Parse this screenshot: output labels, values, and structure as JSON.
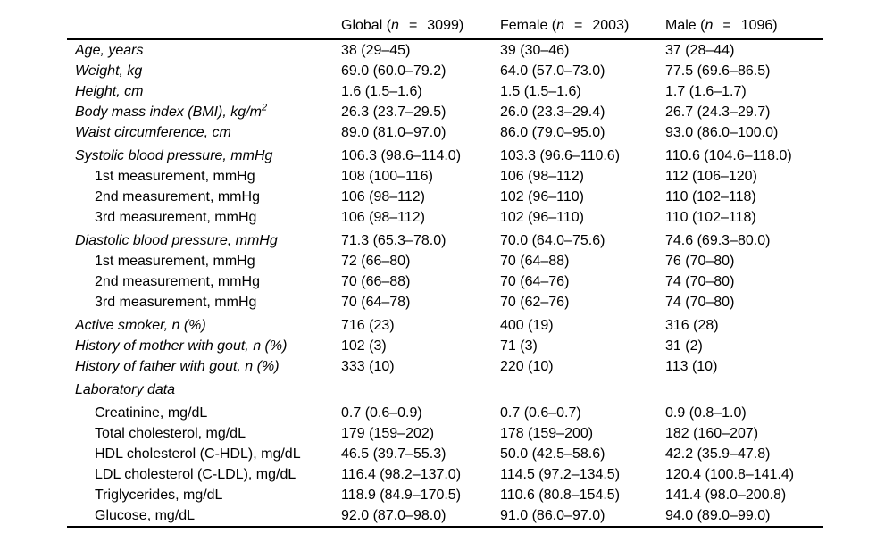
{
  "table": {
    "header": {
      "row_label_column": "",
      "columns": [
        {
          "prefix": "Global (",
          "n_symbol": "n",
          "equals": "=",
          "count": "3099)"
        },
        {
          "prefix": "Female (",
          "n_symbol": "n",
          "equals": "=",
          "count": "2003)"
        },
        {
          "prefix": "Male (",
          "n_symbol": "n",
          "equals": "=",
          "count": "1096)"
        }
      ]
    },
    "rows": [
      {
        "label": "Age, years",
        "style": "main",
        "spacer": false,
        "values": [
          "38 (29–45)",
          "39 (30–46)",
          "37 (28–44)"
        ]
      },
      {
        "label": "Weight, kg",
        "style": "main",
        "spacer": false,
        "values": [
          "69.0 (60.0–79.2)",
          "64.0 (57.0–73.0)",
          "77.5 (69.6–86.5)"
        ]
      },
      {
        "label": "Height, cm",
        "style": "main",
        "spacer": false,
        "values": [
          "1.6 (1.5–1.6)",
          "1.5 (1.5–1.6)",
          "1.7 (1.6–1.7)"
        ]
      },
      {
        "label": "Body mass index (BMI), kg/m",
        "sup": "2",
        "style": "main",
        "spacer": false,
        "values": [
          "26.3 (23.7–29.5)",
          "26.0 (23.3–29.4)",
          "26.7 (24.3–29.7)"
        ]
      },
      {
        "label": "Waist circumference, cm",
        "style": "main",
        "spacer": false,
        "values": [
          "89.0 (81.0–97.0)",
          "86.0 (79.0–95.0)",
          "93.0 (86.0–100.0)"
        ]
      },
      {
        "label": "Systolic blood pressure, mmHg",
        "style": "main",
        "spacer": true,
        "values": [
          "106.3 (98.6–114.0)",
          "103.3 (96.6–110.6)",
          "110.6 (104.6–118.0)"
        ]
      },
      {
        "label": "1st measurement, mmHg",
        "style": "sub",
        "spacer": false,
        "values": [
          "108 (100–116)",
          "106 (98–112)",
          "112 (106–120)"
        ]
      },
      {
        "label": "2nd measurement, mmHg",
        "style": "sub",
        "spacer": false,
        "values": [
          "106 (98–112)",
          "102 (96–110)",
          "110 (102–118)"
        ]
      },
      {
        "label": "3rd measurement, mmHg",
        "style": "sub",
        "spacer": false,
        "values": [
          "106 (98–112)",
          "102 (96–110)",
          "110 (102–118)"
        ]
      },
      {
        "label": "Diastolic blood pressure, mmHg",
        "style": "main",
        "spacer": true,
        "values": [
          "71.3 (65.3–78.0)",
          "70.0 (64.0–75.6)",
          "74.6 (69.3–80.0)"
        ]
      },
      {
        "label": "1st measurement, mmHg",
        "style": "sub",
        "spacer": false,
        "values": [
          "72 (66–80)",
          "70 (64–88)",
          "76 (70–80)"
        ]
      },
      {
        "label": "2nd measurement, mmHg",
        "style": "sub",
        "spacer": false,
        "values": [
          "70 (66–88)",
          "70 (64–76)",
          "74 (70–80)"
        ]
      },
      {
        "label": "3rd measurement, mmHg",
        "style": "sub",
        "spacer": false,
        "values": [
          "70 (64–78)",
          "70 (62–76)",
          "74 (70–80)"
        ]
      },
      {
        "label": "Active smoker, n (%)",
        "style": "main",
        "spacer": true,
        "values": [
          "716 (23)",
          "400 (19)",
          "316 (28)"
        ]
      },
      {
        "label": "History of mother with gout, n (%)",
        "style": "main",
        "spacer": false,
        "values": [
          "102 (3)",
          "71 (3)",
          "31 (2)"
        ]
      },
      {
        "label": "History of father with gout, n (%)",
        "style": "main",
        "spacer": false,
        "values": [
          "333 (10)",
          "220 (10)",
          "113 (10)"
        ]
      },
      {
        "label": "Laboratory data",
        "style": "main",
        "spacer": true,
        "values": []
      },
      {
        "label": "Creatinine, mg/dL",
        "style": "sub",
        "spacer": true,
        "values": [
          "0.7 (0.6–0.9)",
          "0.7 (0.6–0.7)",
          "0.9 (0.8–1.0)"
        ]
      },
      {
        "label": "Total cholesterol, mg/dL",
        "style": "sub",
        "spacer": false,
        "values": [
          "179 (159–202)",
          "178 (159–200)",
          "182 (160–207)"
        ]
      },
      {
        "label": "HDL cholesterol (C-HDL), mg/dL",
        "style": "sub",
        "spacer": false,
        "values": [
          "46.5 (39.7–55.3)",
          "50.0 (42.5–58.6)",
          "42.2 (35.9–47.8)"
        ]
      },
      {
        "label": "LDL cholesterol (C-LDL), mg/dL",
        "style": "sub",
        "spacer": false,
        "values": [
          "116.4 (98.2–137.0)",
          "114.5 (97.2–134.5)",
          "120.4 (100.8–141.4)"
        ]
      },
      {
        "label": "Triglycerides, mg/dL",
        "style": "sub",
        "spacer": false,
        "values": [
          "118.9 (84.9–170.5)",
          "110.6 (80.8–154.5)",
          "141.4 (98.0–200.8)"
        ]
      },
      {
        "label": "Glucose, mg/dL",
        "style": "sub",
        "spacer": false,
        "values": [
          "92.0 (87.0–98.0)",
          "91.0 (86.0–97.0)",
          "94.0 (89.0–99.0)"
        ]
      }
    ]
  }
}
